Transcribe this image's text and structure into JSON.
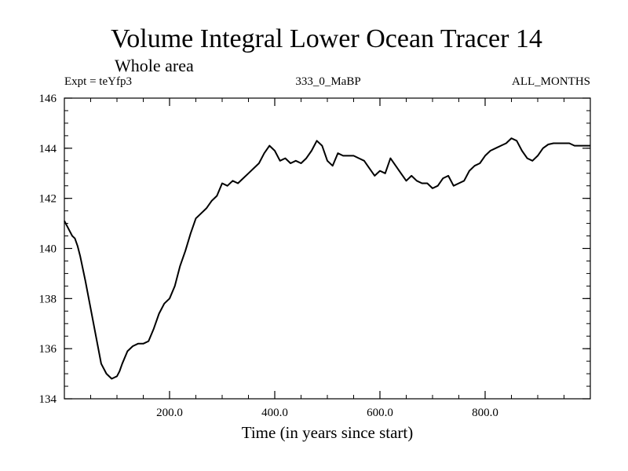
{
  "chart_data": {
    "type": "line",
    "title": "Volume Integral Lower Ocean Tracer 14",
    "subtitle": "Whole area",
    "expt_label": "Expt = teYfp3",
    "center_label": "333_0_MaBP",
    "right_label": "ALL_MONTHS",
    "xlabel": "Time (in years since start)",
    "ylabel": "",
    "xlim": [
      0,
      1000
    ],
    "ylim": [
      134,
      146
    ],
    "x_ticks": [
      {
        "value": 200,
        "label": "200.0"
      },
      {
        "value": 400,
        "label": "400.0"
      },
      {
        "value": 600,
        "label": "600.0"
      },
      {
        "value": 800,
        "label": "800.0"
      }
    ],
    "y_ticks": [
      {
        "value": 134,
        "label": "134"
      },
      {
        "value": 136,
        "label": "136"
      },
      {
        "value": 138,
        "label": "138"
      },
      {
        "value": 140,
        "label": "140"
      },
      {
        "value": 142,
        "label": "142"
      },
      {
        "value": 144,
        "label": "144"
      },
      {
        "value": 146,
        "label": "146"
      }
    ],
    "x_minor_step": 50,
    "y_minor_step": 0.5,
    "grid": false,
    "series": [
      {
        "name": "Lower Ocean Tracer 14",
        "color": "#000000",
        "x": [
          0,
          10,
          15,
          20,
          25,
          30,
          40,
          50,
          60,
          70,
          80,
          90,
          95,
          100,
          105,
          110,
          120,
          130,
          140,
          150,
          160,
          170,
          180,
          190,
          200,
          210,
          220,
          230,
          240,
          250,
          260,
          270,
          280,
          290,
          300,
          310,
          320,
          330,
          340,
          350,
          360,
          370,
          380,
          390,
          400,
          410,
          420,
          430,
          440,
          450,
          460,
          470,
          480,
          490,
          500,
          510,
          520,
          530,
          540,
          550,
          560,
          570,
          580,
          590,
          600,
          610,
          620,
          630,
          640,
          650,
          660,
          670,
          680,
          690,
          700,
          710,
          720,
          730,
          740,
          750,
          760,
          770,
          780,
          790,
          800,
          810,
          820,
          830,
          840,
          850,
          860,
          870,
          880,
          890,
          900,
          910,
          920,
          930,
          940,
          950,
          960,
          970,
          980,
          990,
          1000
        ],
        "y": [
          141.1,
          140.7,
          140.5,
          140.4,
          140.1,
          139.7,
          138.7,
          137.6,
          136.5,
          135.4,
          135.0,
          134.8,
          134.85,
          134.9,
          135.1,
          135.4,
          135.9,
          136.1,
          136.2,
          136.2,
          136.3,
          136.8,
          137.4,
          137.8,
          138.0,
          138.5,
          139.3,
          139.9,
          140.6,
          141.2,
          141.4,
          141.6,
          141.9,
          142.1,
          142.6,
          142.5,
          142.7,
          142.6,
          142.8,
          143.0,
          143.2,
          143.4,
          143.8,
          144.1,
          143.9,
          143.5,
          143.6,
          143.4,
          143.5,
          143.4,
          143.6,
          143.9,
          144.3,
          144.1,
          143.5,
          143.3,
          143.8,
          143.7,
          143.7,
          143.7,
          143.6,
          143.5,
          143.2,
          142.9,
          143.1,
          143.0,
          143.6,
          143.3,
          143.0,
          142.7,
          142.9,
          142.7,
          142.6,
          142.6,
          142.4,
          142.5,
          142.8,
          142.9,
          142.5,
          142.6,
          142.7,
          143.1,
          143.3,
          143.4,
          143.7,
          143.9,
          144.0,
          144.1,
          144.2,
          144.4,
          144.3,
          143.9,
          143.6,
          143.5,
          143.7,
          144.0,
          144.15,
          144.2,
          144.2,
          144.2,
          144.2,
          144.1,
          144.1,
          144.1,
          144.1
        ]
      }
    ]
  }
}
